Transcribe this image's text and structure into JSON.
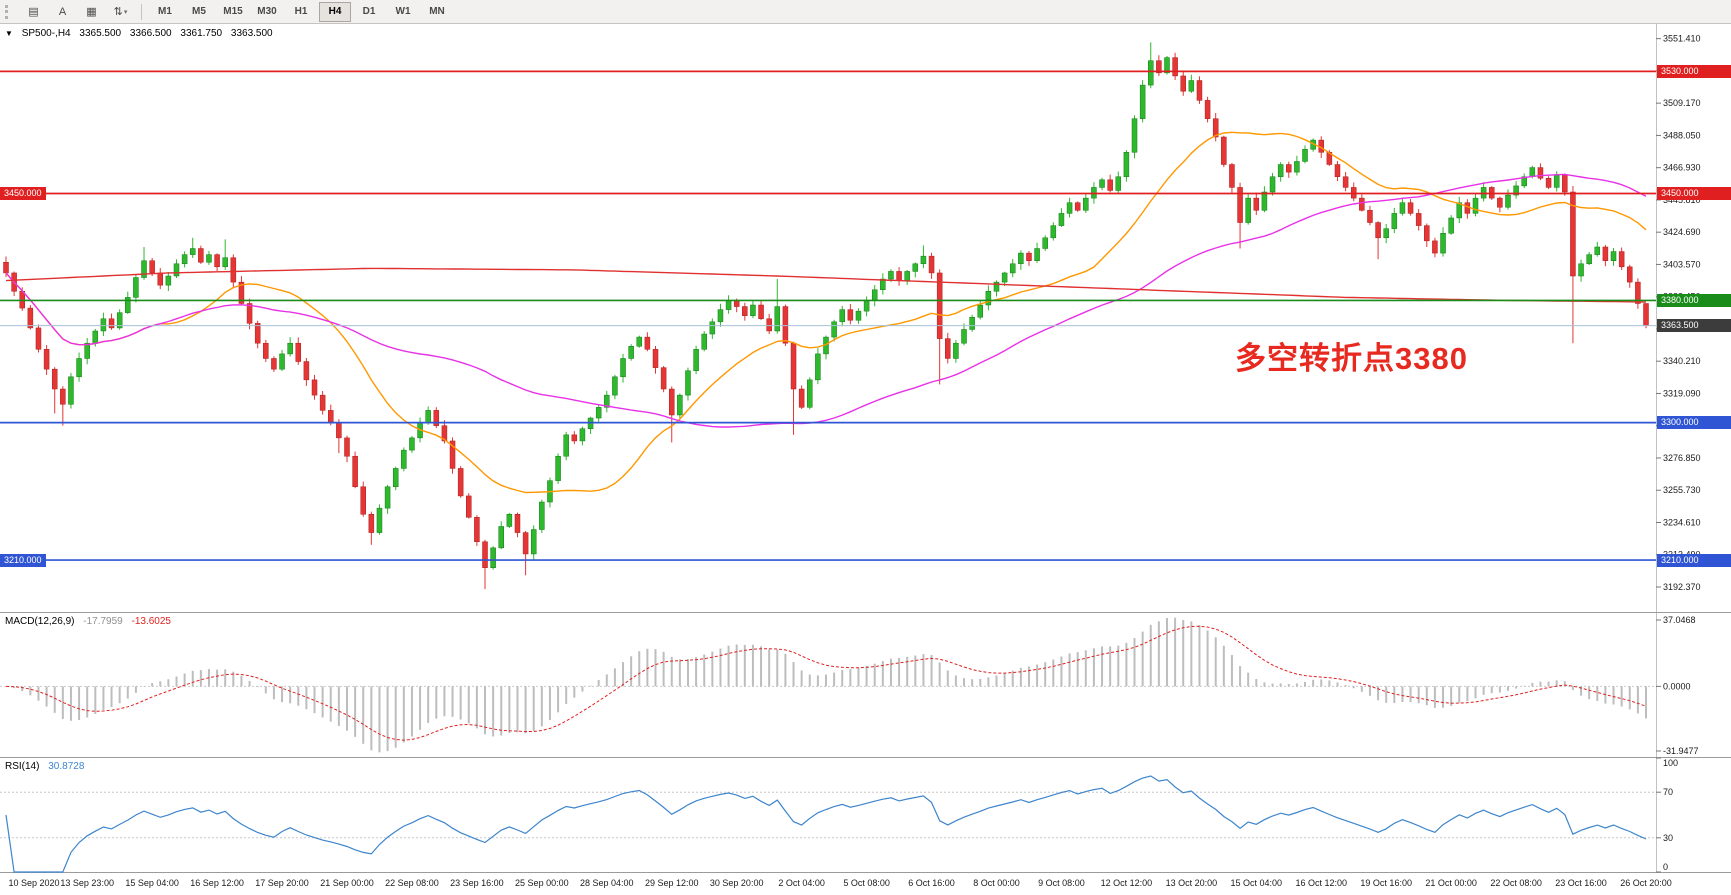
{
  "app": {
    "toolbar": {
      "tools": [
        {
          "name": "charts-list",
          "glyph": "▤"
        },
        {
          "name": "text-tool",
          "glyph": "A"
        },
        {
          "name": "objects-tool",
          "glyph": "▦"
        },
        {
          "name": "arrange-tool",
          "glyph": "⇅",
          "caret": "▾"
        }
      ],
      "timeframes": [
        "M1",
        "M5",
        "M15",
        "M30",
        "H1",
        "H4",
        "D1",
        "W1",
        "MN"
      ],
      "active_timeframe": "H4"
    }
  },
  "chart": {
    "symbol_header": {
      "dropdown_glyph": "▼",
      "symbol": "SP500-,H4",
      "open": "3365.500",
      "high": "3366.500",
      "low": "3361.750",
      "close": "3363.500"
    },
    "levels": [
      {
        "label": "3530.000",
        "price": 3530.0,
        "color": "#e02020",
        "badge_color": "#e02020",
        "left_badge": false
      },
      {
        "label": "3450.000",
        "price": 3450.0,
        "color": "#e02020",
        "badge_color": "#e02020",
        "left_badge": true
      },
      {
        "label": "3380.000",
        "price": 3380.0,
        "color": "#1a8c1a",
        "badge_color": "#1a8c1a",
        "left_badge": false
      },
      {
        "label": "3300.000",
        "price": 3300.0,
        "color": "#2f55d4",
        "badge_color": "#2f55d4",
        "left_badge": false
      },
      {
        "label": "3210.000",
        "price": 3210.0,
        "color": "#2f55d4",
        "badge_color": "#2f55d4",
        "left_badge": true
      }
    ],
    "current_price": {
      "label": "3363.500",
      "price": 3363.5,
      "badge_color": "#3c3c3c",
      "line_color": "#a9c0d6"
    },
    "annotation": {
      "text": "多空转折点3380",
      "color": "#e8291f"
    }
  },
  "chart_data": {
    "type": "candlestick",
    "title": "SP500-,H4",
    "x_axis": {
      "labels": [
        "10 Sep 2020",
        "13 Sep 23:00",
        "15 Sep 04:00",
        "16 Sep 12:00",
        "17 Sep 20:00",
        "21 Sep 00:00",
        "22 Sep 08:00",
        "23 Sep 16:00",
        "25 Sep 00:00",
        "28 Sep 04:00",
        "29 Sep 12:00",
        "30 Sep 20:00",
        "2 Oct 04:00",
        "5 Oct 08:00",
        "6 Oct 16:00",
        "8 Oct 00:00",
        "9 Oct 08:00",
        "12 Oct 12:00",
        "13 Oct 20:00",
        "15 Oct 04:00",
        "16 Oct 12:00",
        "19 Oct 16:00",
        "21 Oct 00:00",
        "22 Oct 08:00",
        "23 Oct 16:00",
        "26 Oct 20:00"
      ],
      "first_label_bar": 2,
      "label_step": 8
    },
    "y_axis": {
      "price_max": 3561,
      "price_min": 3176,
      "ticks": [
        "3551.410",
        "3530.290",
        "3509.170",
        "3488.050",
        "3466.930",
        "3445.810",
        "3424.690",
        "3403.570",
        "3382.450",
        "3361.330",
        "3340.210",
        "3319.090",
        "3297.970",
        "3276.850",
        "3255.730",
        "3234.610",
        "3213.490",
        "3192.370"
      ]
    },
    "candles": {
      "open0": 3405,
      "up_color": "#2eb82e",
      "down_color": "#e53535",
      "closes": [
        3398,
        3386,
        3375,
        3362,
        3348,
        3335,
        3322,
        3312,
        3330,
        3342,
        3352,
        3360,
        3368,
        3362,
        3372,
        3382,
        3395,
        3406,
        3398,
        3390,
        3396,
        3404,
        3410,
        3414,
        3405,
        3410,
        3402,
        3408,
        3392,
        3378,
        3365,
        3352,
        3342,
        3335,
        3345,
        3352,
        3340,
        3328,
        3318,
        3308,
        3300,
        3290,
        3278,
        3258,
        3240,
        3228,
        3244,
        3258,
        3270,
        3282,
        3290,
        3300,
        3308,
        3298,
        3288,
        3270,
        3252,
        3238,
        3222,
        3205,
        3218,
        3232,
        3240,
        3228,
        3214,
        3230,
        3248,
        3262,
        3278,
        3292,
        3288,
        3296,
        3303,
        3310,
        3318,
        3330,
        3342,
        3350,
        3356,
        3348,
        3336,
        3322,
        3305,
        3318,
        3334,
        3348,
        3358,
        3366,
        3374,
        3380,
        3376,
        3370,
        3377,
        3368,
        3360,
        3376,
        3352,
        3322,
        3310,
        3328,
        3345,
        3356,
        3366,
        3374,
        3367,
        3373,
        3380,
        3387,
        3394,
        3399,
        3393,
        3399,
        3404,
        3409,
        3398,
        3355,
        3342,
        3352,
        3361,
        3369,
        3377,
        3386,
        3392,
        3398,
        3404,
        3411,
        3406,
        3414,
        3421,
        3429,
        3437,
        3444,
        3439,
        3447,
        3454,
        3459,
        3452,
        3461,
        3477,
        3499,
        3521,
        3537,
        3529,
        3539,
        3527,
        3517,
        3524,
        3511,
        3499,
        3487,
        3469,
        3454,
        3431,
        3447,
        3439,
        3451,
        3461,
        3469,
        3464,
        3471,
        3479,
        3485,
        3477,
        3469,
        3461,
        3454,
        3447,
        3439,
        3431,
        3421,
        3427,
        3437,
        3444,
        3437,
        3429,
        3419,
        3411,
        3424,
        3434,
        3444,
        3437,
        3447,
        3454,
        3447,
        3441,
        3449,
        3455,
        3461,
        3467,
        3460,
        3454,
        3462,
        3451,
        3396,
        3404,
        3410,
        3415,
        3406,
        3412,
        3402,
        3392,
        3378,
        3363.5
      ],
      "wick_overrides": {
        "6": {
          "low": 3306
        },
        "7": {
          "low": 3298
        },
        "17": {
          "high": 3415
        },
        "23": {
          "high": 3421
        },
        "27": {
          "high": 3420
        },
        "41": {
          "low": 3280
        },
        "45": {
          "low": 3220
        },
        "59": {
          "low": 3191
        },
        "64": {
          "low": 3200
        },
        "82": {
          "low": 3287
        },
        "95": {
          "high": 3394
        },
        "97": {
          "low": 3292
        },
        "113": {
          "high": 3416
        },
        "115": {
          "low": 3325
        },
        "141": {
          "high": 3549
        },
        "152": {
          "low": 3414
        },
        "169": {
          "low": 3407
        },
        "193": {
          "low": 3352
        },
        "202": {
          "high": 3366.5,
          "low": 3361.75
        }
      }
    },
    "moving_averages": [
      {
        "name": "ma-fast",
        "type": "sma",
        "period": 20,
        "color": "#ff9800"
      },
      {
        "name": "ma-mid",
        "type": "sma",
        "period": 60,
        "color": "#e832e8"
      },
      {
        "name": "ma-slow",
        "type": "points",
        "color": "#e03030",
        "points": [
          [
            0,
            3393
          ],
          [
            20,
            3398
          ],
          [
            45,
            3401
          ],
          [
            70,
            3400
          ],
          [
            95,
            3396
          ],
          [
            120,
            3391
          ],
          [
            145,
            3386
          ],
          [
            165,
            3382
          ],
          [
            185,
            3380
          ],
          [
            202,
            3379
          ]
        ]
      }
    ],
    "indicators": {
      "macd": {
        "label": "MACD(12,26,9)",
        "value_main": "-17.7959",
        "value_signal": "-13.6025",
        "fast": 12,
        "slow": 26,
        "signal": 9,
        "axis_labels": [
          "37.0468",
          "0.0000",
          "-31.9477"
        ],
        "hist_color": "#bdbdbd",
        "signal_color": "#e02020"
      },
      "rsi": {
        "label": "RSI(14)",
        "value": "30.8728",
        "period": 14,
        "color": "#3d85cc",
        "levels": [
          70,
          30
        ],
        "axis_labels": [
          "100",
          "70",
          "30",
          "0"
        ]
      }
    }
  }
}
